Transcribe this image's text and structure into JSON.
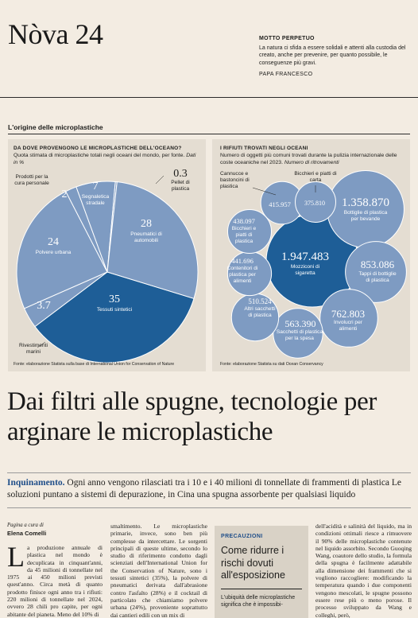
{
  "masthead": {
    "title": "Nòva 24"
  },
  "motto": {
    "title": "MOTTO PERPETUO",
    "text": "La natura ci sfida a essere solidali e attenti alla custodia del creato, anche per prevenire, per quanto possibile, le conseguenze più gravi.",
    "author": "PAPA FRANCESCO"
  },
  "section": {
    "title": "L'origine delle microplastiche"
  },
  "left_panel": {
    "title": "DA DOVE PROVENGONO LE MICROPLASTICHE DELL'OCEANO?",
    "subtitle": "Quota stimata di microplastiche totali negli oceani del mondo, per fonte.",
    "subtitle_note": "Dati in %",
    "source": "Fonte: elaborazione Statista sulla base di International Union for Conservation of Nature",
    "colors": {
      "dark": "#1e5e97",
      "light": "#7e9bc2",
      "stroke": "#ffffff"
    }
  },
  "right_panel": {
    "title": "I RIFIUTI TROVATI NEGLI OCEANI",
    "subtitle": "Numero di oggetti più comuni trovati durante la pulizia internazionale delle coste oceaniche nel 2023.",
    "subtitle_note": "Numero di ritrovamenti",
    "source": "Fonte: elaborazione Statista su dati Ocean Conservancy"
  },
  "chart_data": [
    {
      "type": "pie",
      "title": "DA DOVE PROVENGONO LE MICROPLASTICHE DELL'OCEANO?",
      "unit": "%",
      "slices": [
        {
          "label": "Tessuti sintetici",
          "value": 35
        },
        {
          "label": "Rivestimenti marini",
          "value": 3.7
        },
        {
          "label": "Polvere urbana",
          "value": 24
        },
        {
          "label": "Prodotti per la cura personale",
          "value": 2
        },
        {
          "label": "Segnaletica stradale",
          "value": 7
        },
        {
          "label": "Pellet di plastica",
          "value": 0.3
        },
        {
          "label": "Pneumatici di automobili",
          "value": 28
        }
      ]
    },
    {
      "type": "bubble",
      "title": "I RIFIUTI TROVATI NEGLI OCEANI",
      "items": [
        {
          "label": "Mozziconi di sigaretta",
          "value": 1947483,
          "display": "1.947.483"
        },
        {
          "label": "Bottiglie di plastica per bevande",
          "value": 1358870,
          "display": "1.358.870"
        },
        {
          "label": "Tappi di bottiglie di plastica",
          "value": 853086,
          "display": "853.086"
        },
        {
          "label": "Involucri per alimenti",
          "value": 762803,
          "display": "762.803"
        },
        {
          "label": "Sacchetti di plastica per la spesa",
          "value": 563390,
          "display": "563.390"
        },
        {
          "label": "Altri sacchetti di plastica",
          "value": 510524,
          "display": "510.524"
        },
        {
          "label": "Contenitori di plastica per alimenti",
          "value": 441696,
          "display": "441.696"
        },
        {
          "label": "Bicchieri e piatti di plastica",
          "value": 438097,
          "display": "438.097"
        },
        {
          "label": "Cannucce e bastoncini di plastica",
          "value": 415957,
          "display": "415.957"
        },
        {
          "label": "Bicchieri e piatti di carta",
          "value": 375810,
          "display": "375.810"
        }
      ]
    }
  ],
  "headline": "Dai filtri alle spugne, tecnologie per arginare le microplastiche",
  "lead": {
    "kicker": "Inquinamento.",
    "text": " Ogni anno vengono rilasciati tra i 10 e i 40 milioni di tonnellate di frammenti di plastica Le soluzioni puntano a sistemi di depurazione, in Cina una spugna assorbente per qualsiasi liquido"
  },
  "byline": {
    "label": "Pagina a cura di",
    "name": "Elena Comelli"
  },
  "columns": {
    "col1_initial": "L",
    "col1": "a produzione annuale di plastica nel mondo è decuplicata in cinquant'anni, da 45 milioni di tonnellate nel 1975 ai 450 milioni previsti quest'anno. Circa metà di quanto prodotto finisce ogni anno tra i rifiuti: 220 milioni di tonnellate nel 2024, ovvero 28 chili pro capite, per ogni abitante del pianeta. Meno del 10% di",
    "col2": "smaltimento. Le microplastiche primarie, invece, sono ben più complesse da intercettare. Le sorgenti principali di queste ultime, secondo lo studio di riferimento condotto dagli scienziati dell'International Union for the Conservation of Nature, sono i tessuti sintetici (35%), la polvere di pneumatici derivata dall'abrasione contro l'asfalto (28%) e il cocktail di particolato che chiamiamo polvere urbana (24%), proveniente soprattutto dai cantieri edili con un mix di",
    "col4": "dell'acidità e salinità del liquido, ma in condizioni ottimali riesce a rimuovere il 90% delle microplastiche contenute nel liquido assorbito. Secondo Guoqing Wang, coautore dello studio, la formula della spugna è facilmente adattabile alla dimensione dei frammenti che si vogliono raccogliere: modificando la temperatura quando i due componenti vengono mescolati, le spugne possono essere rese più o meno porose. Il processo sviluppato da Wang e colleghi, però,"
  },
  "box": {
    "tag": "PRECAUZIONI",
    "title": "Come ridurre i rischi dovuti all'esposizione",
    "text": "L'ubiquità delle microplastiche significa che è impossibi-"
  }
}
